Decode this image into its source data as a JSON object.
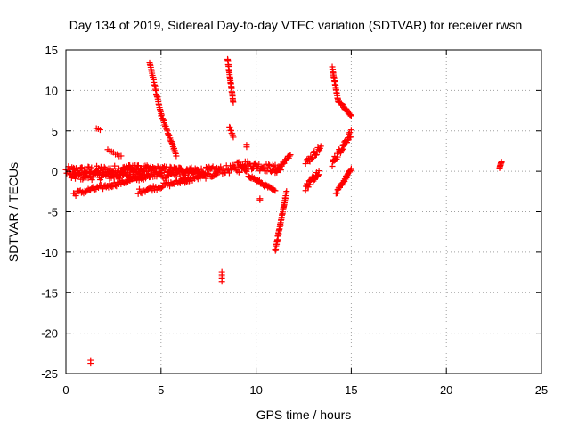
{
  "chart_data": {
    "type": "scatter",
    "title": "Day 134 of 2019, Sidereal Day-to-day VTEC variation (SDTVAR) for receiver rwsn",
    "xlabel": "GPS time / hours",
    "ylabel": "SDTVAR / TECUs",
    "xlim": [
      0,
      25
    ],
    "ylim": [
      -25,
      15
    ],
    "xticks": [
      0,
      5,
      10,
      15,
      20,
      25
    ],
    "yticks": [
      -25,
      -20,
      -15,
      -10,
      -5,
      0,
      5,
      10,
      15
    ],
    "xtick_labels": [
      "0",
      "5",
      "10",
      "15",
      "20",
      "25"
    ],
    "ytick_labels": [
      "-25",
      "-20",
      "-15",
      "-10",
      "-5",
      "0",
      "5",
      "10",
      "15"
    ],
    "grid": true,
    "marker": "+",
    "color": "#ff0000",
    "segments": [
      {
        "x0": 0.0,
        "y0": 0.0,
        "x1": 4.0,
        "y1": 0.2,
        "n": 90,
        "amp": 0.6
      },
      {
        "x0": 0.2,
        "y0": -0.6,
        "x1": 5.5,
        "y1": -0.4,
        "n": 110,
        "amp": 0.5
      },
      {
        "x0": 3.0,
        "y0": 0.4,
        "x1": 7.0,
        "y1": 0.1,
        "n": 80,
        "amp": 0.4
      },
      {
        "x0": 5.5,
        "y0": -0.3,
        "x1": 9.5,
        "y1": 0.4,
        "n": 80,
        "amp": 0.5
      },
      {
        "x0": 9.0,
        "y0": 1.0,
        "x1": 11.3,
        "y1": 0.2,
        "n": 55,
        "amp": 0.5
      },
      {
        "x0": 0.4,
        "y0": -2.8,
        "x1": 4.5,
        "y1": -0.5,
        "n": 70,
        "amp": 0.3
      },
      {
        "x0": 3.8,
        "y0": -2.5,
        "x1": 6.5,
        "y1": -1.0,
        "n": 45,
        "amp": 0.3
      },
      {
        "x0": 6.0,
        "y0": -1.2,
        "x1": 8.0,
        "y1": -0.3,
        "n": 35,
        "amp": 0.3
      },
      {
        "x0": 4.4,
        "y0": 13.5,
        "x1": 5.0,
        "y1": 7.0,
        "n": 30,
        "amp": 0.15
      },
      {
        "x0": 5.0,
        "y0": 7.0,
        "x1": 5.8,
        "y1": 2.0,
        "n": 30,
        "amp": 0.15
      },
      {
        "x0": 8.5,
        "y0": 13.8,
        "x1": 8.8,
        "y1": 8.5,
        "n": 30,
        "amp": 0.15
      },
      {
        "x0": 8.6,
        "y0": 5.5,
        "x1": 8.8,
        "y1": 4.2,
        "n": 8,
        "amp": 0.1
      },
      {
        "x0": 8.2,
        "y0": -12.5,
        "x1": 8.2,
        "y1": -13.6,
        "n": 5,
        "amp": 0.1
      },
      {
        "x0": 9.6,
        "y0": -0.5,
        "x1": 11.0,
        "y1": -2.5,
        "n": 30,
        "amp": 0.2
      },
      {
        "x0": 11.0,
        "y0": -9.8,
        "x1": 11.6,
        "y1": -2.5,
        "n": 40,
        "amp": 0.2
      },
      {
        "x0": 11.0,
        "y0": 0.0,
        "x1": 11.8,
        "y1": 2.0,
        "n": 20,
        "amp": 0.2
      },
      {
        "x0": 12.6,
        "y0": -2.0,
        "x1": 13.3,
        "y1": 0.0,
        "n": 30,
        "amp": 0.4
      },
      {
        "x0": 12.6,
        "y0": 1.0,
        "x1": 13.4,
        "y1": 3.0,
        "n": 22,
        "amp": 0.4
      },
      {
        "x0": 14.0,
        "y0": 12.8,
        "x1": 14.3,
        "y1": 8.8,
        "n": 25,
        "amp": 0.15
      },
      {
        "x0": 14.3,
        "y0": 8.8,
        "x1": 15.0,
        "y1": 6.8,
        "n": 20,
        "amp": 0.15
      },
      {
        "x0": 14.0,
        "y0": 1.0,
        "x1": 15.0,
        "y1": 4.8,
        "n": 40,
        "amp": 0.4
      },
      {
        "x0": 14.2,
        "y0": -2.8,
        "x1": 15.0,
        "y1": 0.3,
        "n": 30,
        "amp": 0.2
      },
      {
        "x0": 1.6,
        "y0": 5.3,
        "x1": 1.8,
        "y1": 5.1,
        "n": 3,
        "amp": 0.05
      },
      {
        "x0": 2.2,
        "y0": 2.7,
        "x1": 2.9,
        "y1": 1.8,
        "n": 8,
        "amp": 0.1
      },
      {
        "x0": 9.5,
        "y0": 3.2,
        "x1": 9.5,
        "y1": 3.0,
        "n": 2,
        "amp": 0.05
      },
      {
        "x0": 10.2,
        "y0": -3.5,
        "x1": 10.2,
        "y1": -3.4,
        "n": 2,
        "amp": 0.05
      },
      {
        "x0": 1.3,
        "y0": -23.4,
        "x1": 1.3,
        "y1": -23.7,
        "n": 2,
        "amp": 0.05
      },
      {
        "x0": 22.8,
        "y0": 0.4,
        "x1": 22.9,
        "y1": 1.3,
        "n": 8,
        "amp": 0.15
      }
    ]
  }
}
